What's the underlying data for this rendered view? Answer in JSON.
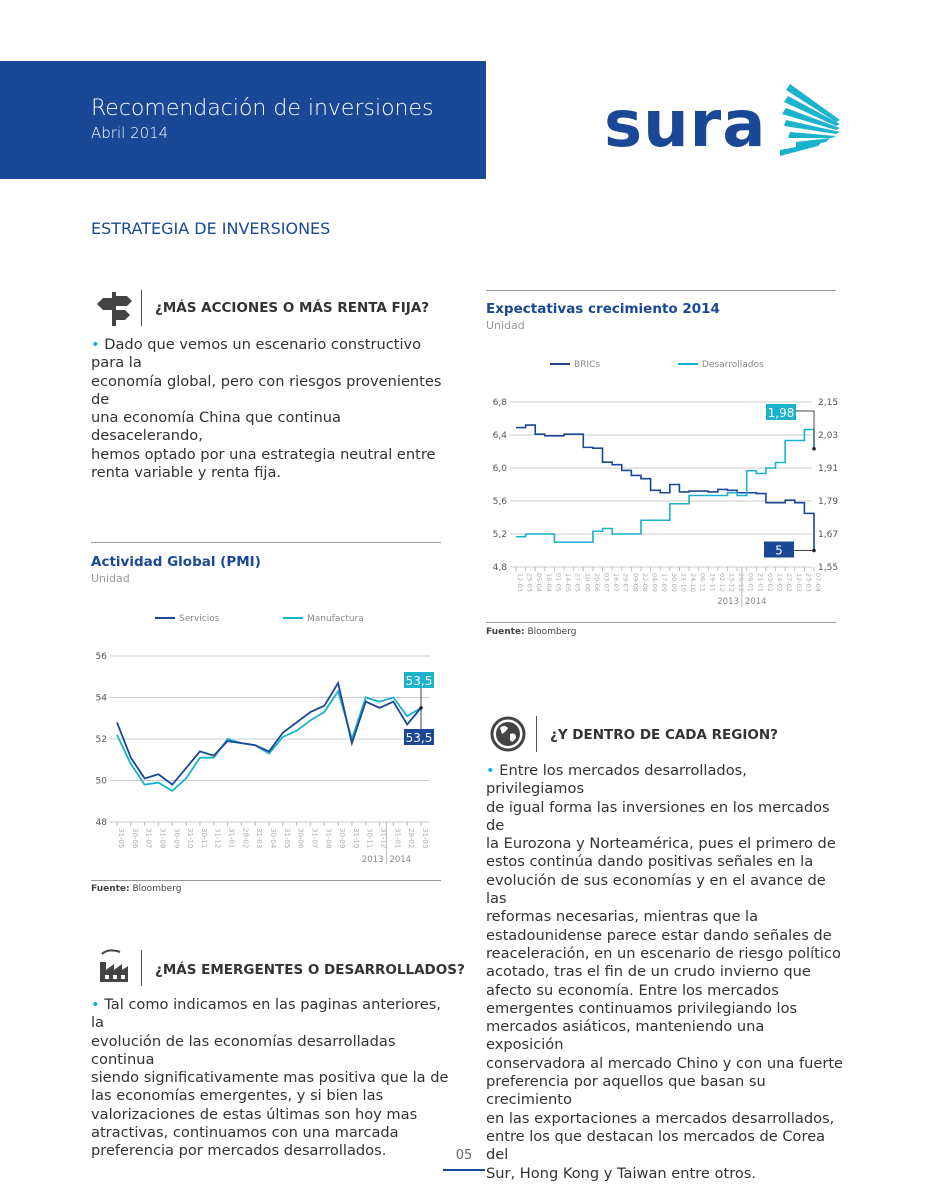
{
  "header": {
    "title": "Recomendación de inversiones",
    "subtitle": "Abril 2014",
    "logo_text": "sura",
    "brand_color": "#1a4896",
    "accent_color": "#1ab2cc"
  },
  "section_title": "ESTRATEGIA DE INVERSIONES",
  "q1": {
    "icon": "signpost-icon",
    "heading": "¿MÁS ACCIONES O MÁS RENTA FIJA?",
    "bullet": "•",
    "text": [
      "Dado que vemos un escenario constructivo para la",
      "economía global, pero con riesgos provenientes de",
      "una economía China que continua desacelerando,",
      "hemos optado por una estrategia neutral entre",
      "renta variable y renta fija."
    ]
  },
  "q2": {
    "icon": "factory-icon",
    "heading": "¿MÁS EMERGENTES O DESARROLLADOS?",
    "bullet": "•",
    "text": [
      "Tal como indicamos en las paginas anteriores, la",
      "evolución de las economías desarrolladas continua",
      "siendo significativamente mas positiva que la de",
      "las economías emergentes, y si bien las",
      "valorizaciones de estas últimas son hoy mas",
      "atractivas, continuamos con una marcada",
      "preferencia por mercados desarrollados."
    ]
  },
  "q3": {
    "icon": "globe-icon",
    "heading": "¿Y DENTRO DE CADA REGION?",
    "bullet": "•",
    "text": [
      "Entre los mercados desarrollados, privilegiamos",
      "de igual forma las inversiones en los mercados de",
      "la Eurozona y Norteamérica, pues el primero de",
      "estos continúa dando positivas señales en la",
      "evolución de sus economías y en el avance de las",
      "reformas necesarias, mientras que la",
      "estadounidense parece estar dando señales de",
      "reaceleración, en un escenario de riesgo político",
      "acotado, tras el fin de un crudo invierno que",
      "afecto su economía. Entre los mercados",
      "emergentes continuamos privilegiando los",
      "mercados asiáticos, manteniendo una exposición",
      "conservadora al mercado Chino y con una fuerte",
      "preferencia por aquellos que basan su crecimiento",
      "en las exportaciones a mercados desarrollados,",
      "entre los que destacan los mercados de Corea del",
      "Sur, Hong Kong y Taiwan entre otros."
    ]
  },
  "source_label": "Fuente:",
  "source_value": "Bloomberg",
  "page_number": "05",
  "chart_data": [
    {
      "type": "line",
      "title": "Actividad Global (PMI)",
      "unit": "Unidad",
      "categories": [
        "31-05",
        "30-06",
        "31-07",
        "31-08",
        "30-09",
        "31-10",
        "30-11",
        "31-12",
        "31-01",
        "28-02",
        "31-03",
        "30-04",
        "31-05",
        "30-06",
        "31-07",
        "31-08",
        "30-09",
        "31-10",
        "30-11",
        "31-12",
        "31-01",
        "28-02",
        "31-03"
      ],
      "year_labels": [
        "2013",
        "2014"
      ],
      "ylim": [
        48,
        56
      ],
      "yticks": [
        "56",
        "54",
        "52",
        "50",
        "48"
      ],
      "grid": true,
      "legend": "top",
      "series": [
        {
          "name": "Servicios",
          "color": "#1a4896",
          "values": [
            52.8,
            51.1,
            50.1,
            50.3,
            49.8,
            50.6,
            51.4,
            51.2,
            51.9,
            51.8,
            51.7,
            51.4,
            52.3,
            52.8,
            53.3,
            53.6,
            54.7,
            51.8,
            53.8,
            53.5,
            53.8,
            52.7,
            53.5
          ],
          "end_label": "53,5"
        },
        {
          "name": "Manufactura",
          "color": "#1ab2cc",
          "values": [
            52.2,
            50.8,
            49.8,
            49.9,
            49.5,
            50.1,
            51.1,
            51.1,
            52.0,
            51.8,
            51.7,
            51.3,
            52.1,
            52.4,
            52.9,
            53.3,
            54.3,
            52.0,
            54.0,
            53.8,
            54.0,
            53.1,
            53.5
          ],
          "end_label": "53,5"
        }
      ]
    },
    {
      "type": "line",
      "title": "Expectativas crecimiento 2014",
      "unit": "Unidad",
      "categories": [
        "12-03",
        "25-03",
        "05-04",
        "18-04",
        "01-05",
        "14-05",
        "27-05",
        "10-06",
        "20-06",
        "03-07",
        "16-07",
        "29-07",
        "09-08",
        "22-08",
        "04-09",
        "17-09",
        "30-09",
        "11-10",
        "24-10",
        "06-11",
        "19-11",
        "02-12",
        "13-12",
        "26-12",
        "08-01",
        "21-01",
        "03-02",
        "14-02",
        "27-02",
        "12-03",
        "23-03",
        "07-04"
      ],
      "year_labels": [
        "2013",
        "2014"
      ],
      "ylim_left": [
        4.8,
        6.8
      ],
      "yticks_left": [
        "6,8",
        "6,4",
        "6,0",
        "5,6",
        "5,2",
        "4,8"
      ],
      "ylim_right": [
        1.55,
        2.15
      ],
      "yticks_right": [
        "2,15",
        "2,03",
        "1,91",
        "1,79",
        "1,67",
        "1,55"
      ],
      "grid": true,
      "legend": "top",
      "series": [
        {
          "name": "BRICs",
          "axis": "left",
          "color": "#1a4896",
          "values": [
            6.49,
            6.52,
            6.41,
            6.39,
            6.39,
            6.41,
            6.41,
            6.25,
            6.24,
            6.07,
            6.04,
            5.97,
            5.91,
            5.87,
            5.73,
            5.7,
            5.8,
            5.71,
            5.72,
            5.72,
            5.71,
            5.74,
            5.73,
            5.7,
            5.7,
            5.69,
            5.58,
            5.58,
            5.61,
            5.58,
            5.45,
            5.0
          ],
          "end_label": "5"
        },
        {
          "name": "Desarrollados",
          "axis": "right",
          "color": "#1ab2cc",
          "values": [
            1.66,
            1.67,
            1.67,
            1.67,
            1.64,
            1.64,
            1.64,
            1.64,
            1.68,
            1.69,
            1.67,
            1.67,
            1.67,
            1.72,
            1.72,
            1.72,
            1.78,
            1.78,
            1.81,
            1.81,
            1.81,
            1.81,
            1.82,
            1.81,
            1.9,
            1.89,
            1.91,
            1.93,
            2.01,
            2.01,
            2.05,
            1.98
          ],
          "end_label": "1,98"
        }
      ]
    }
  ]
}
